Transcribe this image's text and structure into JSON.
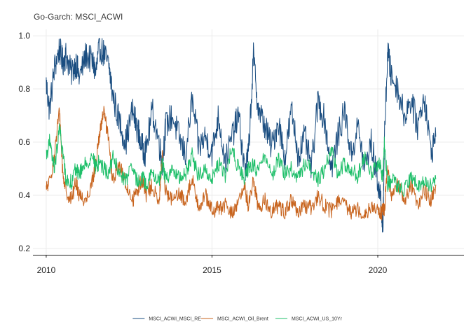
{
  "chart_data": {
    "type": "line",
    "title": "Go-Garch: MSCI_ACWI",
    "xlabel": "",
    "ylabel": "",
    "xlim": [
      2009.6,
      2022.6
    ],
    "ylim": [
      0.2,
      1.0
    ],
    "x_ticks": [
      2010,
      2015,
      2020
    ],
    "x_tick_labels": [
      "2010",
      "2015",
      "2020"
    ],
    "y_ticks": [
      0.2,
      0.4,
      0.6,
      0.8,
      1.0
    ],
    "y_tick_labels": [
      "0.2",
      "0.4",
      "0.6",
      "0.8",
      "1.0"
    ],
    "grid": true,
    "legend_position": "bottom",
    "series": [
      {
        "name": "MSCI_ACWI_MSCI_RE",
        "color": "#1a4d80",
        "x": [
          2010.0,
          2010.1,
          2010.25,
          2010.4,
          2010.5,
          2010.6,
          2010.75,
          2010.9,
          2011.0,
          2011.2,
          2011.4,
          2011.5,
          2011.6,
          2011.75,
          2011.9,
          2012.0,
          2012.2,
          2012.4,
          2012.6,
          2012.75,
          2012.9,
          2013.0,
          2013.2,
          2013.4,
          2013.5,
          2013.6,
          2013.8,
          2014.0,
          2014.2,
          2014.4,
          2014.6,
          2014.8,
          2015.0,
          2015.2,
          2015.4,
          2015.6,
          2015.8,
          2016.0,
          2016.1,
          2016.25,
          2016.4,
          2016.6,
          2016.8,
          2017.0,
          2017.2,
          2017.4,
          2017.6,
          2017.8,
          2018.0,
          2018.2,
          2018.4,
          2018.6,
          2018.8,
          2019.0,
          2019.2,
          2019.4,
          2019.6,
          2019.8,
          2020.0,
          2020.1,
          2020.15,
          2020.2,
          2020.3,
          2020.4,
          2020.6,
          2020.8,
          2021.0,
          2021.2,
          2021.4,
          2021.6,
          2021.75
        ],
        "values": [
          0.82,
          0.72,
          0.88,
          0.95,
          0.9,
          0.93,
          0.86,
          0.9,
          0.84,
          0.93,
          0.9,
          0.86,
          0.96,
          0.93,
          0.88,
          0.78,
          0.68,
          0.6,
          0.72,
          0.65,
          0.58,
          0.56,
          0.72,
          0.6,
          0.52,
          0.66,
          0.7,
          0.62,
          0.55,
          0.76,
          0.58,
          0.62,
          0.56,
          0.7,
          0.52,
          0.62,
          0.7,
          0.48,
          0.56,
          0.92,
          0.72,
          0.66,
          0.58,
          0.68,
          0.54,
          0.72,
          0.55,
          0.62,
          0.5,
          0.76,
          0.68,
          0.5,
          0.62,
          0.72,
          0.55,
          0.66,
          0.5,
          0.6,
          0.45,
          0.38,
          0.25,
          0.6,
          0.95,
          0.85,
          0.8,
          0.7,
          0.76,
          0.66,
          0.78,
          0.56,
          0.62
        ]
      },
      {
        "name": "MSCI_ACWI_Oil_Brent",
        "color": "#c8641e",
        "x": [
          2010.0,
          2010.1,
          2010.25,
          2010.4,
          2010.5,
          2010.6,
          2010.75,
          2010.9,
          2011.0,
          2011.2,
          2011.4,
          2011.5,
          2011.6,
          2011.75,
          2011.9,
          2012.0,
          2012.2,
          2012.4,
          2012.6,
          2012.75,
          2012.9,
          2013.0,
          2013.2,
          2013.4,
          2013.5,
          2013.6,
          2013.8,
          2014.0,
          2014.2,
          2014.4,
          2014.6,
          2014.8,
          2015.0,
          2015.2,
          2015.4,
          2015.6,
          2015.8,
          2016.0,
          2016.1,
          2016.25,
          2016.4,
          2016.6,
          2016.8,
          2017.0,
          2017.2,
          2017.4,
          2017.6,
          2017.8,
          2018.0,
          2018.2,
          2018.4,
          2018.6,
          2018.8,
          2019.0,
          2019.2,
          2019.4,
          2019.6,
          2019.8,
          2020.0,
          2020.1,
          2020.15,
          2020.2,
          2020.3,
          2020.4,
          2020.6,
          2020.8,
          2021.0,
          2021.2,
          2021.4,
          2021.6,
          2021.75
        ],
        "values": [
          0.42,
          0.45,
          0.55,
          0.72,
          0.48,
          0.42,
          0.38,
          0.45,
          0.4,
          0.38,
          0.46,
          0.52,
          0.62,
          0.72,
          0.58,
          0.45,
          0.52,
          0.44,
          0.38,
          0.42,
          0.46,
          0.4,
          0.44,
          0.36,
          0.55,
          0.42,
          0.38,
          0.4,
          0.38,
          0.46,
          0.36,
          0.4,
          0.34,
          0.35,
          0.36,
          0.33,
          0.38,
          0.42,
          0.36,
          0.46,
          0.35,
          0.38,
          0.34,
          0.36,
          0.34,
          0.38,
          0.33,
          0.36,
          0.35,
          0.4,
          0.36,
          0.34,
          0.38,
          0.36,
          0.34,
          0.35,
          0.33,
          0.36,
          0.34,
          0.33,
          0.34,
          0.35,
          0.5,
          0.4,
          0.45,
          0.38,
          0.44,
          0.36,
          0.42,
          0.38,
          0.44
        ]
      },
      {
        "name": "MSCI_ACWI_US_10Yr",
        "color": "#1fbf6a",
        "x": [
          2010.0,
          2010.1,
          2010.25,
          2010.4,
          2010.5,
          2010.6,
          2010.75,
          2010.9,
          2011.0,
          2011.2,
          2011.4,
          2011.5,
          2011.6,
          2011.75,
          2011.9,
          2012.0,
          2012.2,
          2012.4,
          2012.6,
          2012.75,
          2012.9,
          2013.0,
          2013.2,
          2013.4,
          2013.5,
          2013.6,
          2013.8,
          2014.0,
          2014.2,
          2014.4,
          2014.6,
          2014.8,
          2015.0,
          2015.2,
          2015.4,
          2015.6,
          2015.8,
          2016.0,
          2016.1,
          2016.25,
          2016.4,
          2016.6,
          2016.8,
          2017.0,
          2017.2,
          2017.4,
          2017.6,
          2017.8,
          2018.0,
          2018.2,
          2018.4,
          2018.6,
          2018.8,
          2019.0,
          2019.2,
          2019.4,
          2019.6,
          2019.8,
          2020.0,
          2020.1,
          2020.15,
          2020.2,
          2020.3,
          2020.4,
          2020.6,
          2020.8,
          2021.0,
          2021.2,
          2021.4,
          2021.6,
          2021.75
        ],
        "values": [
          0.55,
          0.6,
          0.5,
          0.65,
          0.56,
          0.46,
          0.45,
          0.5,
          0.48,
          0.52,
          0.55,
          0.5,
          0.53,
          0.5,
          0.48,
          0.55,
          0.48,
          0.46,
          0.5,
          0.45,
          0.47,
          0.44,
          0.48,
          0.45,
          0.52,
          0.46,
          0.5,
          0.46,
          0.48,
          0.55,
          0.47,
          0.5,
          0.46,
          0.52,
          0.47,
          0.58,
          0.5,
          0.46,
          0.5,
          0.52,
          0.48,
          0.56,
          0.47,
          0.54,
          0.48,
          0.5,
          0.46,
          0.52,
          0.5,
          0.46,
          0.5,
          0.57,
          0.48,
          0.52,
          0.5,
          0.47,
          0.55,
          0.48,
          0.52,
          0.5,
          0.46,
          0.6,
          0.44,
          0.46,
          0.44,
          0.42,
          0.46,
          0.44,
          0.45,
          0.44,
          0.46
        ]
      }
    ]
  }
}
